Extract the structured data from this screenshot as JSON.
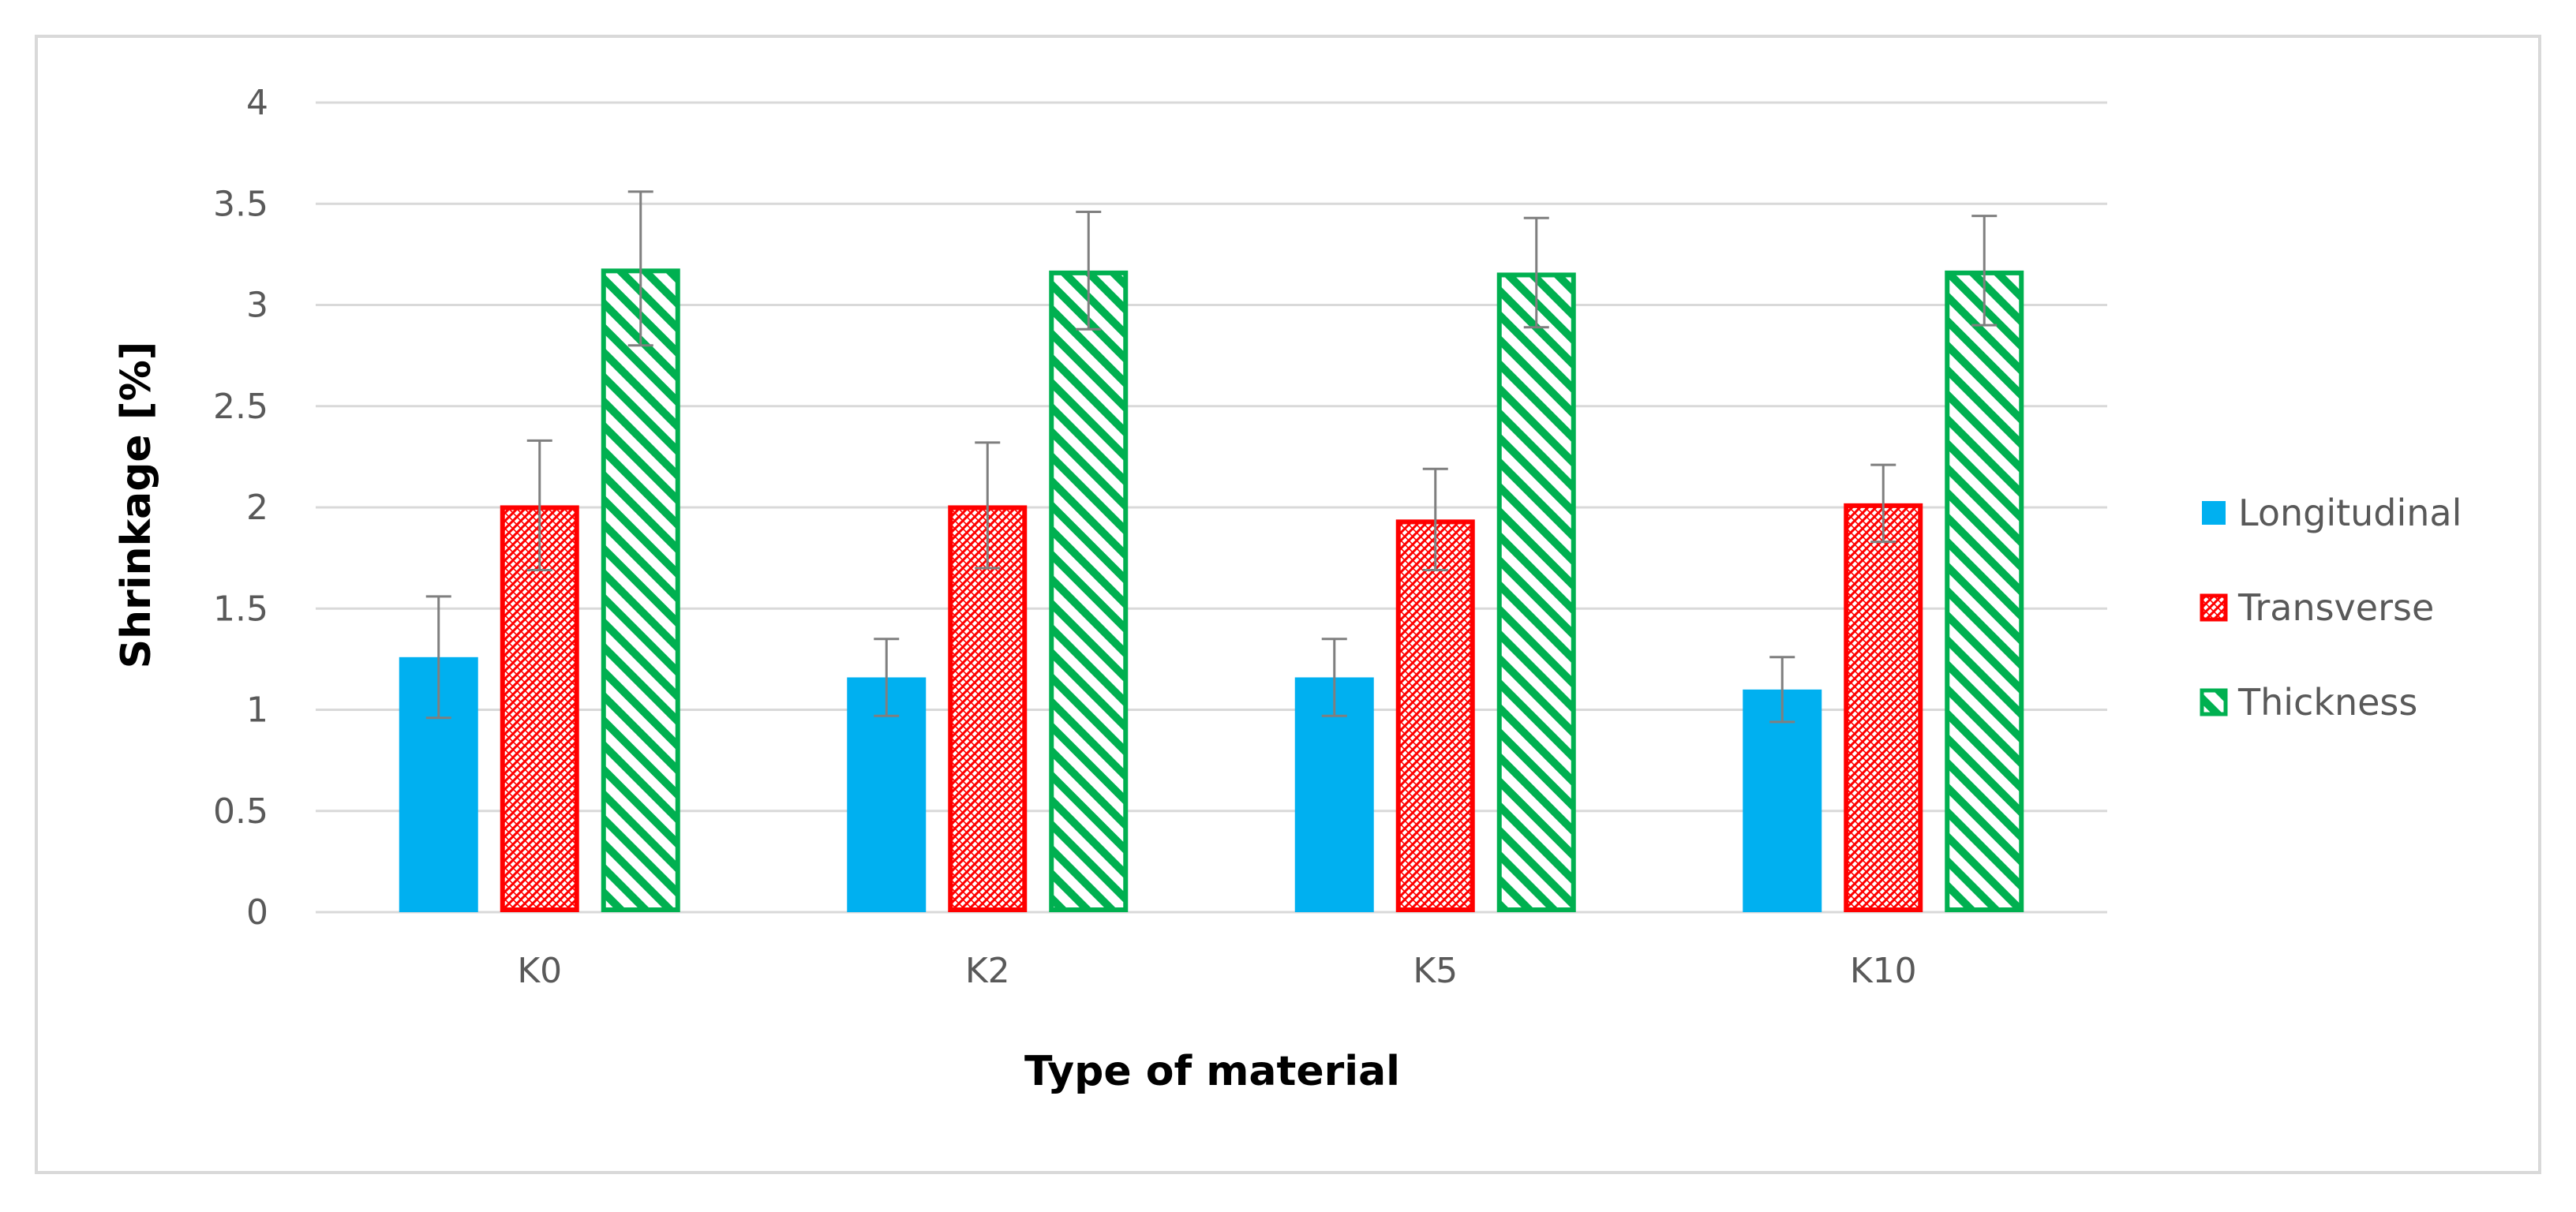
{
  "chart_data": {
    "type": "bar",
    "title": "",
    "xlabel": "Type of material",
    "ylabel": "Shrinkage [%]",
    "ylim": [
      0,
      4
    ],
    "yticks": [
      "0",
      "0.5",
      "1",
      "1.5",
      "2",
      "2.5",
      "3",
      "3.5",
      "4"
    ],
    "grid": true,
    "legend_position": "right",
    "categories": [
      "K0",
      "K2",
      "K5",
      "K10"
    ],
    "series": [
      {
        "name": "Longitudinal",
        "color": "#00b0f0",
        "pattern": "solid",
        "values": [
          1.26,
          1.16,
          1.16,
          1.1
        ],
        "errors": [
          0.3,
          0.19,
          0.19,
          0.16
        ]
      },
      {
        "name": "Transverse",
        "color": "#ff0000",
        "pattern": "crosshatch",
        "values": [
          2.01,
          2.01,
          1.94,
          2.02
        ],
        "errors": [
          0.32,
          0.31,
          0.25,
          0.19
        ]
      },
      {
        "name": "Thickness",
        "color": "#00b050",
        "pattern": "diagonal",
        "values": [
          3.18,
          3.17,
          3.16,
          3.17
        ],
        "errors": [
          0.38,
          0.29,
          0.27,
          0.27
        ]
      }
    ]
  }
}
